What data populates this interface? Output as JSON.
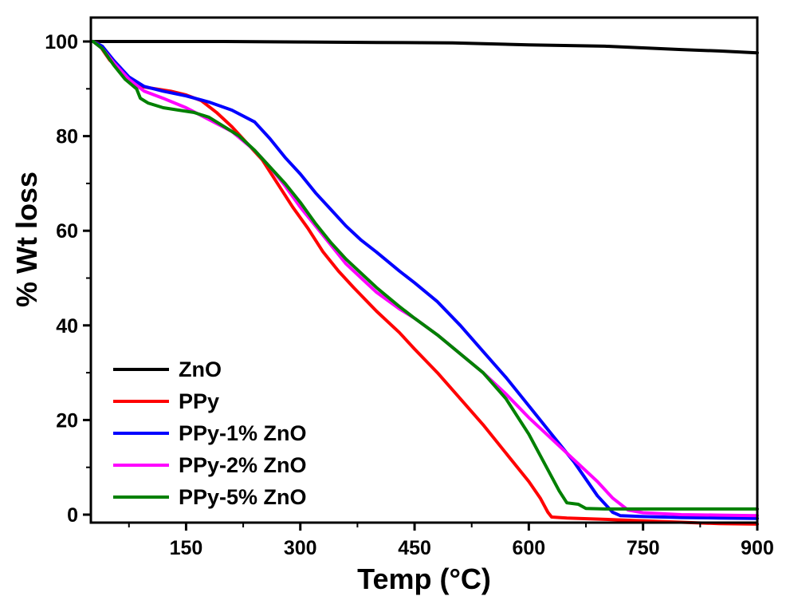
{
  "chart_data": {
    "type": "line",
    "title": "",
    "xlabel": "Temp (°C)",
    "ylabel": "% Wt loss",
    "xlim": [
      25,
      900
    ],
    "ylim": [
      -2,
      103
    ],
    "x_ticks": [
      150,
      300,
      450,
      600,
      750,
      900
    ],
    "x_tick_labels": [
      "150",
      "300",
      "450",
      "600",
      "750",
      "900"
    ],
    "y_ticks": [
      0,
      20,
      40,
      60,
      80,
      100
    ],
    "y_tick_labels": [
      "0",
      "20",
      "40",
      "60",
      "80",
      "100"
    ],
    "grid": false,
    "legend_position": "bottom-left",
    "series": [
      {
        "name": "ZnO",
        "color": "#000000",
        "points": [
          [
            28,
            100
          ],
          [
            50,
            100
          ],
          [
            100,
            100
          ],
          [
            200,
            100
          ],
          [
            300,
            99.9
          ],
          [
            400,
            99.8
          ],
          [
            500,
            99.7
          ],
          [
            600,
            99.3
          ],
          [
            700,
            99.0
          ],
          [
            800,
            98.3
          ],
          [
            850,
            98.0
          ],
          [
            900,
            97.6
          ]
        ]
      },
      {
        "name": "PPy",
        "color": "#ff0000",
        "points": [
          [
            28,
            100
          ],
          [
            35,
            99.5
          ],
          [
            50,
            96
          ],
          [
            70,
            93
          ],
          [
            90,
            90.5
          ],
          [
            110,
            90
          ],
          [
            130,
            89.5
          ],
          [
            150,
            88.7
          ],
          [
            170,
            87.5
          ],
          [
            190,
            85
          ],
          [
            210,
            82
          ],
          [
            230,
            78.5
          ],
          [
            250,
            75
          ],
          [
            270,
            70
          ],
          [
            290,
            65
          ],
          [
            310,
            60.5
          ],
          [
            330,
            55.5
          ],
          [
            350,
            51.5
          ],
          [
            370,
            48
          ],
          [
            400,
            43
          ],
          [
            430,
            38.5
          ],
          [
            450,
            35
          ],
          [
            480,
            30
          ],
          [
            510,
            24.5
          ],
          [
            540,
            19
          ],
          [
            570,
            13
          ],
          [
            600,
            7
          ],
          [
            615,
            3.5
          ],
          [
            625,
            0.5
          ],
          [
            630,
            -0.5
          ],
          [
            650,
            -0.7
          ],
          [
            700,
            -1.0
          ],
          [
            750,
            -1.3
          ],
          [
            800,
            -1.6
          ],
          [
            850,
            -1.9
          ],
          [
            900,
            -2.0
          ]
        ]
      },
      {
        "name": "PPy-1% ZnO",
        "color": "#0000ff",
        "points": [
          [
            28,
            100
          ],
          [
            40,
            99
          ],
          [
            55,
            96
          ],
          [
            75,
            92.5
          ],
          [
            95,
            90.5
          ],
          [
            120,
            89.5
          ],
          [
            150,
            88.5
          ],
          [
            180,
            87.2
          ],
          [
            210,
            85.5
          ],
          [
            240,
            83
          ],
          [
            260,
            79.5
          ],
          [
            280,
            75.5
          ],
          [
            300,
            72
          ],
          [
            320,
            68
          ],
          [
            340,
            64.5
          ],
          [
            360,
            61
          ],
          [
            380,
            58
          ],
          [
            400,
            55.5
          ],
          [
            430,
            51.5
          ],
          [
            450,
            49
          ],
          [
            480,
            45
          ],
          [
            510,
            40
          ],
          [
            540,
            34.5
          ],
          [
            570,
            29
          ],
          [
            600,
            23
          ],
          [
            630,
            17
          ],
          [
            660,
            11
          ],
          [
            690,
            4
          ],
          [
            710,
            0.5
          ],
          [
            720,
            -0.2
          ],
          [
            750,
            -0.4
          ],
          [
            800,
            -0.6
          ],
          [
            850,
            -0.7
          ],
          [
            900,
            -0.8
          ]
        ]
      },
      {
        "name": "PPy-2% ZnO",
        "color": "#ff00ff",
        "points": [
          [
            28,
            100
          ],
          [
            40,
            98.5
          ],
          [
            55,
            95.5
          ],
          [
            75,
            92
          ],
          [
            95,
            89.5
          ],
          [
            120,
            88
          ],
          [
            150,
            86
          ],
          [
            180,
            83.5
          ],
          [
            210,
            81
          ],
          [
            240,
            77
          ],
          [
            260,
            73.5
          ],
          [
            280,
            69.5
          ],
          [
            300,
            65
          ],
          [
            320,
            61
          ],
          [
            340,
            57
          ],
          [
            360,
            53
          ],
          [
            380,
            50
          ],
          [
            400,
            47
          ],
          [
            430,
            43.5
          ],
          [
            450,
            41.5
          ],
          [
            480,
            38
          ],
          [
            510,
            34
          ],
          [
            540,
            30
          ],
          [
            570,
            25.5
          ],
          [
            600,
            20.5
          ],
          [
            630,
            16
          ],
          [
            660,
            11.5
          ],
          [
            690,
            7
          ],
          [
            710,
            3.5
          ],
          [
            730,
            1
          ],
          [
            750,
            0.4
          ],
          [
            800,
            0
          ],
          [
            850,
            -0.1
          ],
          [
            900,
            -0.2
          ]
        ]
      },
      {
        "name": "PPy-5% ZnO",
        "color": "#008000",
        "points": [
          [
            28,
            100
          ],
          [
            40,
            98.5
          ],
          [
            55,
            95
          ],
          [
            70,
            92
          ],
          [
            85,
            90
          ],
          [
            90,
            88
          ],
          [
            100,
            87
          ],
          [
            120,
            86
          ],
          [
            140,
            85.5
          ],
          [
            160,
            85
          ],
          [
            180,
            84
          ],
          [
            200,
            82
          ],
          [
            220,
            80
          ],
          [
            240,
            77
          ],
          [
            260,
            73.5
          ],
          [
            280,
            70
          ],
          [
            300,
            66
          ],
          [
            320,
            61.5
          ],
          [
            340,
            57.5
          ],
          [
            360,
            54
          ],
          [
            380,
            51
          ],
          [
            400,
            48
          ],
          [
            430,
            44
          ],
          [
            450,
            41.5
          ],
          [
            480,
            38
          ],
          [
            510,
            34
          ],
          [
            540,
            30
          ],
          [
            570,
            24.5
          ],
          [
            600,
            17
          ],
          [
            620,
            11
          ],
          [
            640,
            5
          ],
          [
            650,
            2.5
          ],
          [
            665,
            2.2
          ],
          [
            675,
            1.3
          ],
          [
            700,
            1.2
          ],
          [
            750,
            1.2
          ],
          [
            800,
            1.2
          ],
          [
            850,
            1.2
          ],
          [
            900,
            1.2
          ]
        ]
      }
    ]
  }
}
